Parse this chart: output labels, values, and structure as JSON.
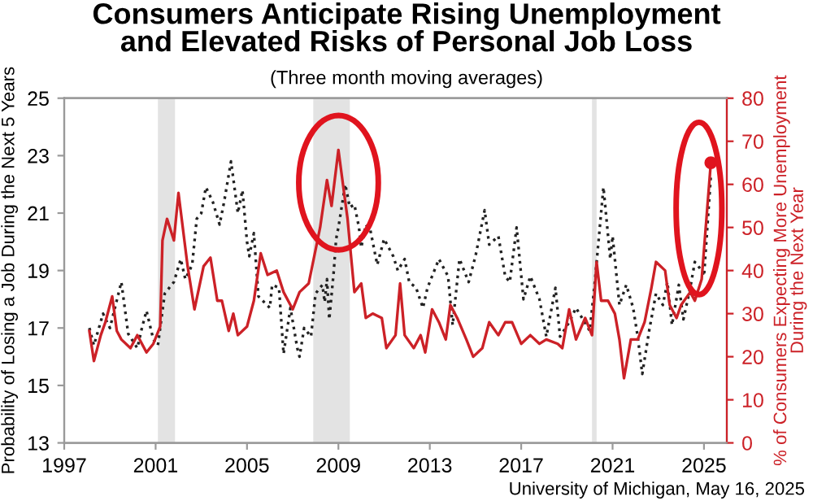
{
  "chart_data": {
    "type": "line",
    "title": "Consumers Anticipate Rising Unemployment\nand Elevated Risks of Personal Job Loss",
    "subtitle": "(Three month moving averages)",
    "ylabel": "Probability of Losing a Job During the Next 5 Years",
    "y2label": "% of Consumers Expecting More Unemployment\nDuring the Next Year",
    "annotations": [
      "University of Michigan, May 16, 2025"
    ],
    "xlim": [
      1997,
      2026
    ],
    "xticks": [
      1997,
      2001,
      2005,
      2009,
      2013,
      2017,
      2021,
      2025
    ],
    "ylim": [
      13,
      25
    ],
    "yticks": [
      13,
      15,
      17,
      19,
      21,
      23,
      25
    ],
    "y2lim": [
      0,
      80
    ],
    "y2ticks": [
      0,
      10,
      20,
      30,
      40,
      50,
      60,
      70,
      80
    ],
    "grid": false,
    "bands": [
      {
        "axis": "x",
        "from": 2001.1,
        "to": 2001.85,
        "color": "#e3e3e3"
      },
      {
        "axis": "x",
        "from": 2007.9,
        "to": 2009.5,
        "color": "#e3e3e3"
      },
      {
        "axis": "x",
        "from": 2020.1,
        "to": 2020.3,
        "color": "#e3e3e3"
      }
    ],
    "series": [
      {
        "type": "line",
        "line_style": "dotted",
        "color": "#222222",
        "axis": "y",
        "x": [
          1998.1,
          1998.3,
          1998.7,
          1999.0,
          1999.5,
          1999.8,
          2000.2,
          2000.4,
          2000.6,
          2000.9,
          2001.1,
          2001.4,
          2001.8,
          2002.1,
          2002.3,
          2002.6,
          2002.8,
          2003.0,
          2003.2,
          2003.5,
          2003.8,
          2004.0,
          2004.3,
          2004.6,
          2004.8,
          2005.0,
          2005.1,
          2005.3,
          2005.5,
          2006.0,
          2006.1,
          2006.4,
          2006.6,
          2006.9,
          2007.2,
          2007.3,
          2007.5,
          2007.8,
          2008.0,
          2008.3,
          2008.4,
          2008.5,
          2008.6,
          2008.8,
          2008.9,
          2009.0,
          2009.3,
          2009.5,
          2009.7,
          2009.9,
          2010.0,
          2010.2,
          2010.4,
          2010.7,
          2011.0,
          2011.4,
          2011.6,
          2011.9,
          2012.1,
          2012.4,
          2012.7,
          2012.9,
          2013.4,
          2013.8,
          2014.0,
          2014.3,
          2014.7,
          2015.0,
          2015.4,
          2015.6,
          2016.0,
          2016.3,
          2016.5,
          2016.8,
          2017.1,
          2017.4,
          2017.8,
          2018.1,
          2018.5,
          2018.7,
          2019.1,
          2019.4,
          2019.7,
          2020.0,
          2020.2,
          2020.6,
          2020.9,
          2021.0,
          2021.3,
          2021.6,
          2021.9,
          2022.1,
          2022.3,
          2022.6,
          2022.9,
          2023.2,
          2023.4,
          2023.6,
          2023.9,
          2024.1,
          2024.4,
          2024.6,
          2024.9,
          2025.0,
          2025.3
        ],
        "values": [
          17.0,
          16.4,
          17.5,
          17.0,
          18.6,
          16.8,
          16.3,
          17.0,
          17.6,
          16.6,
          16.4,
          18.2,
          18.6,
          19.4,
          18.7,
          19.2,
          20.8,
          21.0,
          21.9,
          21.4,
          20.6,
          21.4,
          22.8,
          21.0,
          21.8,
          20.0,
          19.5,
          20.3,
          18.1,
          17.7,
          18.5,
          18.4,
          16.1,
          17.7,
          16.3,
          16.0,
          17.0,
          16.7,
          18.2,
          18.5,
          17.9,
          18.7,
          17.3,
          19.0,
          20.1,
          20.5,
          22.0,
          21.2,
          21.3,
          20.5,
          19.8,
          20.6,
          20.4,
          19.2,
          20.1,
          19.5,
          19.0,
          19.4,
          18.6,
          18.4,
          17.7,
          18.4,
          19.4,
          18.8,
          17.1,
          19.4,
          18.6,
          19.5,
          21.1,
          19.9,
          20.2,
          18.8,
          18.6,
          20.5,
          18.0,
          18.8,
          18.0,
          16.7,
          18.4,
          16.7,
          17.2,
          17.7,
          17.3,
          16.9,
          18.4,
          21.9,
          19.4,
          20.2,
          17.8,
          18.5,
          17.7,
          16.7,
          15.4,
          16.9,
          18.2,
          17.8,
          18.6,
          17.1,
          18.5,
          17.3,
          18.4,
          19.3,
          19.0,
          18.8,
          22.3
        ]
      },
      {
        "type": "line",
        "line_style": "solid",
        "color": "#cc2127",
        "axis": "y2",
        "x": [
          1998.1,
          1998.3,
          1998.6,
          1998.8,
          1999.1,
          1999.3,
          1999.5,
          1999.9,
          2000.2,
          2000.6,
          2000.9,
          2001.2,
          2001.3,
          2001.5,
          2001.8,
          2002.0,
          2002.4,
          2002.7,
          2003.1,
          2003.4,
          2003.7,
          2003.9,
          2004.2,
          2004.4,
          2004.6,
          2005.0,
          2005.3,
          2005.6,
          2005.9,
          2006.3,
          2006.6,
          2007.0,
          2007.3,
          2007.7,
          2008.2,
          2008.5,
          2008.7,
          2009.0,
          2009.4,
          2009.7,
          2010.0,
          2010.2,
          2010.5,
          2010.9,
          2011.1,
          2011.5,
          2011.7,
          2011.9,
          2012.3,
          2012.6,
          2012.8,
          2013.1,
          2013.4,
          2013.7,
          2013.9,
          2014.2,
          2014.6,
          2014.9,
          2015.3,
          2015.6,
          2016.0,
          2016.3,
          2016.6,
          2017.0,
          2017.4,
          2017.8,
          2018.1,
          2018.6,
          2018.8,
          2019.1,
          2019.4,
          2019.8,
          2020.1,
          2020.3,
          2020.5,
          2020.8,
          2021.1,
          2021.3,
          2021.5,
          2021.8,
          2022.1,
          2022.4,
          2022.7,
          2022.9,
          2023.3,
          2023.5,
          2023.8,
          2024.0,
          2024.4,
          2024.6,
          2024.9,
          2025.3
        ],
        "values": [
          26,
          19,
          25,
          28,
          34,
          26,
          24,
          22,
          25,
          21,
          23,
          27,
          47,
          52,
          47,
          58,
          41,
          31,
          41,
          43,
          33,
          33,
          26,
          30,
          25,
          27,
          33,
          44,
          39,
          40,
          35,
          31,
          35,
          37,
          50,
          61,
          55,
          68,
          52,
          35,
          37,
          29,
          30,
          29,
          22,
          25,
          37,
          25,
          22,
          25,
          21,
          31,
          28,
          24,
          32,
          29,
          24,
          20,
          22,
          28,
          25,
          28,
          28,
          23,
          25,
          23,
          24,
          23,
          22,
          31,
          24,
          29,
          25,
          42,
          33,
          33,
          30,
          24,
          15,
          24,
          24,
          28,
          36,
          42,
          40,
          32,
          29,
          32,
          35,
          33,
          38,
          65
        ]
      },
      {
        "type": "scatter",
        "marker": "circle",
        "color": "#e0141e",
        "axis": "y2",
        "x": [
          2025.3
        ],
        "values": [
          65
        ]
      }
    ]
  }
}
